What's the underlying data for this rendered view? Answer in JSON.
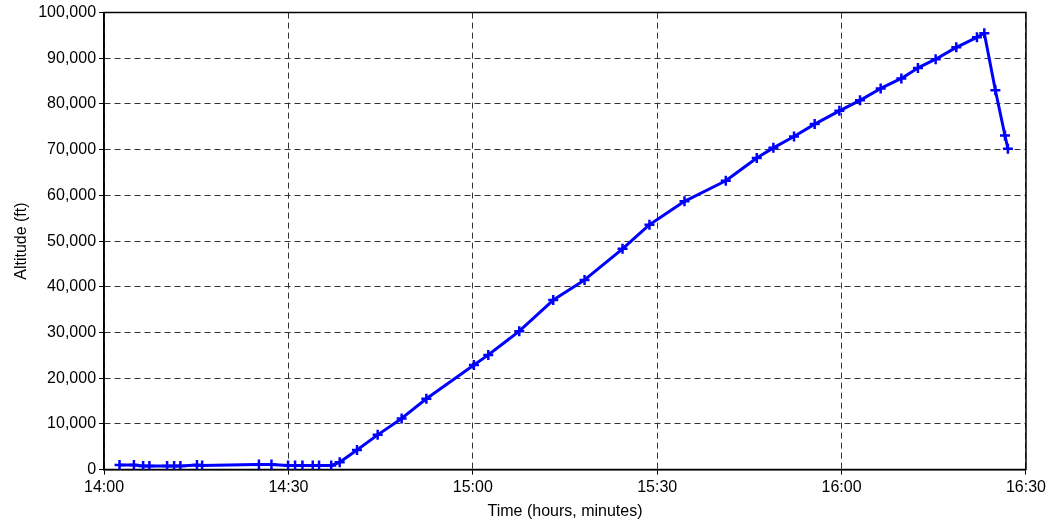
{
  "chart_data": {
    "type": "line",
    "xlabel": "Time (hours, minutes)",
    "ylabel": "Altitude (ft)",
    "x": [
      14.042,
      14.081,
      14.106,
      14.123,
      14.171,
      14.19,
      14.207,
      14.252,
      14.266,
      14.42,
      14.454,
      14.499,
      14.518,
      14.538,
      14.566,
      14.583,
      14.616,
      14.639,
      14.686,
      14.742,
      14.807,
      14.874,
      15.003,
      15.042,
      15.126,
      15.218,
      15.303,
      15.406,
      15.479,
      15.574,
      15.686,
      15.77,
      15.815,
      15.871,
      15.927,
      15.994,
      16.05,
      16.106,
      16.162,
      16.207,
      16.255,
      16.311,
      16.367,
      16.387,
      16.417,
      16.443,
      16.451
    ],
    "series": [
      {
        "color": "#0000ff",
        "values": [
          1000,
          1000,
          800,
          800,
          800,
          800,
          800,
          1000,
          900,
          1100,
          1100,
          900,
          900,
          900,
          900,
          900,
          900,
          1600,
          4300,
          7600,
          11200,
          15500,
          22900,
          25100,
          30300,
          37100,
          41500,
          48300,
          53600,
          58700,
          63200,
          68200,
          70400,
          72900,
          75600,
          78500,
          80800,
          83400,
          85600,
          87900,
          89800,
          92400,
          94600,
          95500,
          83000,
          73100,
          70200
        ]
      }
    ],
    "xlim": [
      14,
      16.5
    ],
    "xticks": [
      {
        "value": 14,
        "label": "14:00"
      },
      {
        "value": 14.5,
        "label": "14:30"
      },
      {
        "value": 15,
        "label": "15:00"
      },
      {
        "value": 15.5,
        "label": "15:30"
      },
      {
        "value": 16,
        "label": "16:00"
      },
      {
        "value": 16.5,
        "label": "16:30"
      }
    ],
    "ylim": [
      0,
      100000
    ],
    "yticks": [
      {
        "value": 0,
        "label": "0"
      },
      {
        "value": 10000,
        "label": "10,000"
      },
      {
        "value": 20000,
        "label": "20,000"
      },
      {
        "value": 30000,
        "label": "30,000"
      },
      {
        "value": 40000,
        "label": "40,000"
      },
      {
        "value": 50000,
        "label": "50,000"
      },
      {
        "value": 60000,
        "label": "60,000"
      },
      {
        "value": 70000,
        "label": "70,000"
      },
      {
        "value": 80000,
        "label": "80,000"
      },
      {
        "value": 90000,
        "label": "90,000"
      },
      {
        "value": 100000,
        "label": "100,000"
      }
    ],
    "grid": true,
    "marker": "cross",
    "line_style": "solid"
  }
}
